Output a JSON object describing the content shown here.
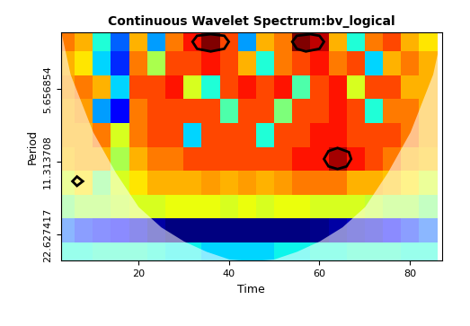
{
  "chart_data": {
    "type": "heatmap",
    "title": "Continuous Wavelet Spectrum:bv_logical",
    "x_label": "Time",
    "y_label": "Period",
    "log": "y",
    "xlim": [
      3,
      87
    ],
    "xticks": [
      20,
      40,
      60,
      80
    ],
    "ylim": [
      29,
      3.3
    ],
    "yticks": [
      5.656854,
      11.313708,
      22.627417
    ],
    "x": [
      4,
      8,
      12,
      16,
      20,
      24,
      28,
      32,
      36,
      40,
      44,
      48,
      52,
      56,
      60,
      64,
      68,
      72,
      76,
      80,
      84
    ],
    "periods": [
      3.5,
      4.4,
      5.5,
      6.9,
      8.7,
      10.9,
      13.7,
      17.2,
      21.6,
      27.1
    ],
    "cells": [
      [
        0.75,
        0.7,
        0.4,
        0.25,
        0.7,
        0.3,
        0.75,
        0.85,
        0.95,
        0.8,
        0.3,
        0.7,
        0.75,
        0.95,
        0.9,
        0.7,
        0.4,
        0.75,
        0.8,
        0.7,
        0.65
      ],
      [
        0.7,
        0.65,
        0.35,
        0.2,
        0.75,
        0.55,
        0.8,
        0.8,
        0.85,
        0.8,
        0.7,
        0.4,
        0.75,
        0.8,
        0.85,
        0.75,
        0.8,
        0.35,
        0.7,
        0.75,
        0.7
      ],
      [
        0.72,
        0.75,
        0.7,
        0.35,
        0.8,
        0.8,
        0.85,
        0.6,
        0.4,
        0.8,
        0.85,
        0.8,
        0.85,
        0.45,
        0.8,
        0.85,
        0.6,
        0.8,
        0.8,
        0.7,
        0.7
      ],
      [
        0.7,
        0.72,
        0.3,
        0.15,
        0.75,
        0.8,
        0.8,
        0.8,
        0.8,
        0.45,
        0.8,
        0.8,
        0.5,
        0.8,
        0.8,
        0.85,
        0.8,
        0.4,
        0.75,
        0.75,
        0.7
      ],
      [
        0.7,
        0.7,
        0.75,
        0.6,
        0.75,
        0.8,
        0.8,
        0.35,
        0.8,
        0.8,
        0.8,
        0.4,
        0.8,
        0.8,
        0.85,
        0.85,
        0.8,
        0.8,
        0.8,
        0.75,
        0.7
      ],
      [
        0.68,
        0.7,
        0.7,
        0.55,
        0.7,
        0.75,
        0.75,
        0.8,
        0.8,
        0.8,
        0.8,
        0.8,
        0.8,
        0.85,
        0.85,
        0.92,
        0.85,
        0.8,
        0.75,
        0.7,
        0.68
      ],
      [
        0.6,
        0.65,
        0.5,
        0.6,
        0.65,
        0.7,
        0.7,
        0.7,
        0.72,
        0.7,
        0.72,
        0.7,
        0.72,
        0.75,
        0.75,
        0.75,
        0.7,
        0.7,
        0.68,
        0.65,
        0.6
      ],
      [
        0.5,
        0.55,
        0.55,
        0.58,
        0.6,
        0.6,
        0.62,
        0.62,
        0.62,
        0.6,
        0.62,
        0.6,
        0.62,
        0.62,
        0.6,
        0.6,
        0.6,
        0.58,
        0.55,
        0.55,
        0.5
      ],
      [
        0.25,
        0.2,
        0.18,
        0.15,
        0.12,
        0.08,
        0.05,
        0.05,
        0.05,
        0.05,
        0.05,
        0.05,
        0.05,
        0.05,
        0.06,
        0.08,
        0.1,
        0.12,
        0.15,
        0.2,
        0.25
      ],
      [
        0.4,
        0.4,
        0.42,
        0.42,
        0.42,
        0.4,
        0.38,
        0.38,
        0.35,
        0.35,
        0.35,
        0.35,
        0.38,
        0.38,
        0.4,
        0.4,
        0.42,
        0.42,
        0.42,
        0.4,
        0.4
      ]
    ],
    "coi": {
      "x": [
        3,
        5,
        10,
        15,
        20,
        25,
        30,
        35,
        40,
        45,
        50,
        55,
        60,
        65,
        70,
        75,
        80,
        85,
        87
      ],
      "period": [
        3.3,
        4.9,
        8.5,
        12.5,
        17.3,
        21,
        24,
        26.5,
        28.5,
        29,
        28.5,
        26.5,
        24,
        21,
        17.3,
        12.5,
        8.5,
        4.9,
        3.3
      ]
    },
    "significant_regions": [
      {
        "x": [
          32,
          33,
          36,
          39,
          40,
          39,
          36,
          33
        ],
        "period": [
          3.6,
          3.4,
          3.35,
          3.4,
          3.6,
          3.85,
          3.95,
          3.85
        ]
      },
      {
        "x": [
          54,
          55,
          58,
          60,
          61,
          60,
          57,
          55
        ],
        "period": [
          3.6,
          3.4,
          3.35,
          3.4,
          3.6,
          3.85,
          3.95,
          3.85
        ]
      },
      {
        "x": [
          61,
          62,
          64,
          66.5,
          67,
          66,
          64,
          62
        ],
        "period": [
          11,
          10.2,
          9.9,
          10.3,
          11,
          11.8,
          12.1,
          11.8
        ]
      },
      {
        "x": [
          5.5,
          6.5,
          7.8,
          6.5
        ],
        "period": [
          13.6,
          13.0,
          13.6,
          14.2
        ]
      }
    ]
  }
}
